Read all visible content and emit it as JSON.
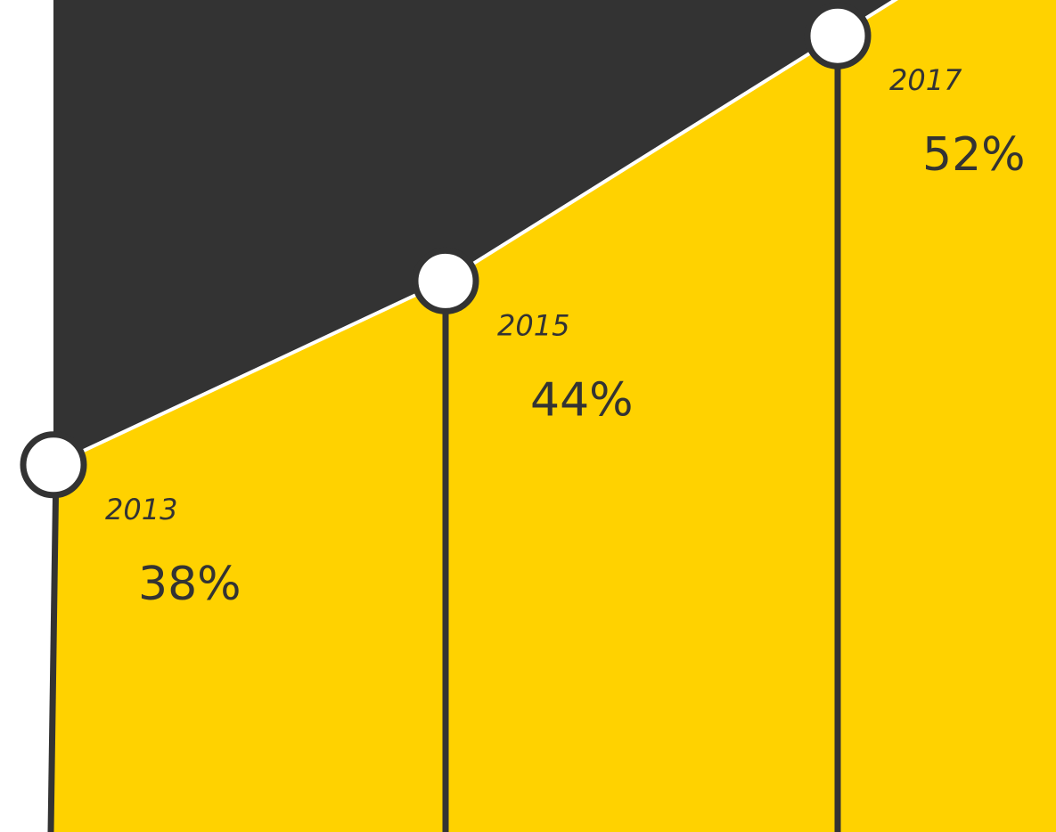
{
  "chart_data": {
    "type": "area",
    "categories": [
      "2013",
      "2015",
      "2017"
    ],
    "values": [
      38,
      44,
      52
    ],
    "value_labels": [
      "38%",
      "44%",
      "52%"
    ],
    "color": "#ffd200",
    "background_color": "#333333"
  }
}
